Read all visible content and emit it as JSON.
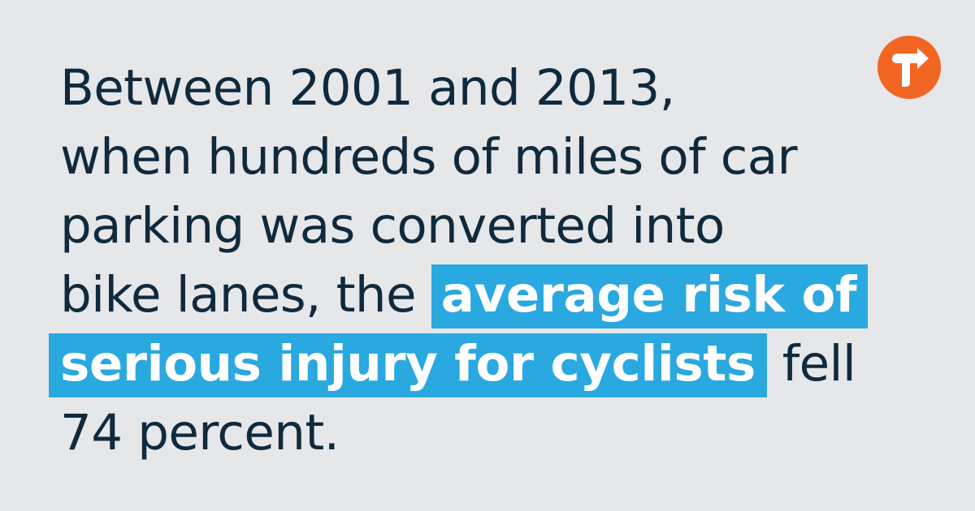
{
  "colors": {
    "background": "#e6e7e9",
    "text": "#0f2a3c",
    "highlight": "#2aa8e0",
    "highlight_text": "#ffffff",
    "logo": "#f26522"
  },
  "logo": {
    "icon": "t-arrow-logo-icon"
  },
  "quote": {
    "line1": "Between 2001 and 2013,",
    "line2": "when hundreds of miles of car",
    "line3": "parking was converted into",
    "line4_plain": "bike lanes, the",
    "line4_highlight": "average risk of",
    "line5_highlight": "serious injury for cyclists",
    "line5_plain": "fell",
    "line6": "74 percent."
  }
}
